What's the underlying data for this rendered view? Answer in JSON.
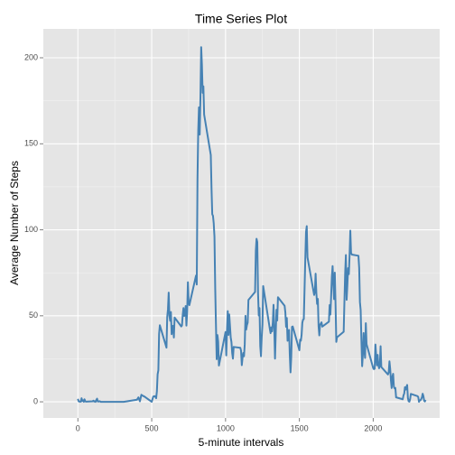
{
  "chart_data": {
    "type": "line",
    "title": "Time Series Plot",
    "x_label": "5-minute intervals",
    "y_label": "Average Number of Steps",
    "xlim": [
      -234,
      2450
    ],
    "ylim": [
      -9.4,
      216.8
    ],
    "xticks": [
      0,
      500,
      1000,
      1500,
      2000
    ],
    "yticks": [
      0,
      50,
      100,
      150,
      200
    ],
    "grid": true,
    "x": [
      0,
      5,
      10,
      15,
      20,
      25,
      30,
      35,
      40,
      45,
      50,
      55,
      100,
      105,
      110,
      115,
      120,
      125,
      130,
      135,
      140,
      145,
      150,
      155,
      200,
      300,
      310,
      400,
      410,
      420,
      430,
      440,
      450,
      500,
      510,
      520,
      525,
      530,
      535,
      540,
      545,
      550,
      555,
      600,
      605,
      610,
      615,
      620,
      625,
      630,
      635,
      640,
      645,
      650,
      655,
      700,
      705,
      710,
      715,
      720,
      725,
      730,
      735,
      740,
      745,
      750,
      755,
      800,
      805,
      810,
      815,
      820,
      825,
      830,
      835,
      840,
      845,
      850,
      855,
      900,
      905,
      910,
      915,
      920,
      925,
      930,
      935,
      940,
      945,
      950,
      955,
      1000,
      1005,
      1010,
      1015,
      1020,
      1025,
      1030,
      1035,
      1040,
      1045,
      1050,
      1055,
      1100,
      1105,
      1110,
      1115,
      1120,
      1125,
      1130,
      1135,
      1140,
      1145,
      1150,
      1155,
      1200,
      1205,
      1210,
      1215,
      1220,
      1225,
      1230,
      1235,
      1240,
      1245,
      1250,
      1255,
      1300,
      1305,
      1310,
      1315,
      1320,
      1325,
      1330,
      1335,
      1340,
      1345,
      1350,
      1355,
      1400,
      1405,
      1410,
      1415,
      1420,
      1425,
      1430,
      1435,
      1440,
      1445,
      1450,
      1455,
      1500,
      1505,
      1510,
      1515,
      1520,
      1525,
      1530,
      1535,
      1540,
      1545,
      1550,
      1555,
      1600,
      1605,
      1610,
      1615,
      1620,
      1625,
      1630,
      1635,
      1640,
      1645,
      1650,
      1655,
      1700,
      1705,
      1710,
      1715,
      1720,
      1725,
      1730,
      1735,
      1740,
      1745,
      1750,
      1755,
      1800,
      1805,
      1810,
      1815,
      1820,
      1825,
      1830,
      1835,
      1840,
      1845,
      1850,
      1855,
      1900,
      1905,
      1910,
      1915,
      1920,
      1925,
      1930,
      1935,
      1940,
      1945,
      1950,
      1955,
      2000,
      2005,
      2010,
      2015,
      2020,
      2025,
      2030,
      2035,
      2040,
      2045,
      2050,
      2055,
      2100,
      2105,
      2110,
      2115,
      2120,
      2125,
      2130,
      2135,
      2140,
      2145,
      2150,
      2155,
      2200,
      2205,
      2210,
      2215,
      2220,
      2225,
      2230,
      2235,
      2240,
      2245,
      2250,
      2255,
      2300,
      2305,
      2310,
      2315,
      2320,
      2325,
      2330,
      2335,
      2340,
      2345,
      2350,
      2355
    ],
    "series": [
      {
        "name": "steps",
        "color": "#4682b4",
        "values": [
          1.72,
          0.34,
          0.13,
          0.15,
          0.08,
          2.09,
          0.53,
          0.87,
          0,
          1.47,
          0.3,
          0.13,
          0.32,
          0.68,
          0.15,
          0.34,
          0,
          1.11,
          1.83,
          0.17,
          0.17,
          0.38,
          0.26,
          0,
          0,
          0,
          0,
          1.2,
          2.6,
          0.3,
          4.1,
          3.5,
          3.1,
          0,
          3,
          3.3,
          2.96,
          2.1,
          6.06,
          16,
          18.3,
          39.5,
          44.5,
          31.5,
          49.3,
          53.8,
          63.5,
          50,
          47.1,
          52.2,
          39.3,
          44,
          44.2,
          37.4,
          49,
          43.8,
          44.4,
          50.5,
          54.5,
          49.9,
          51,
          55.7,
          44.3,
          52.3,
          69.5,
          57.8,
          56.2,
          73.4,
          68.2,
          129.4,
          157.5,
          171.2,
          155.4,
          177.3,
          206.2,
          195.9,
          179.6,
          183.4,
          167,
          143.5,
          124,
          109.1,
          108.1,
          103.7,
          95.97,
          66.2,
          45.2,
          24.8,
          38.8,
          35,
          21.1,
          40.6,
          26.98,
          42.4,
          52.7,
          38.9,
          50.8,
          44.3,
          37.4,
          34.7,
          28.3,
          25.1,
          31.9,
          31.4,
          29.7,
          21.3,
          25.5,
          28.4,
          26.5,
          33.4,
          50,
          42,
          44.6,
          46,
          59.2,
          63.9,
          87.7,
          94.8,
          92.8,
          63.4,
          50.2,
          54.5,
          32.4,
          26.5,
          37.7,
          45.1,
          67.3,
          42.3,
          39.9,
          43.3,
          40.98,
          46.2,
          56.4,
          42.8,
          25.1,
          39.97,
          53.5,
          47.3,
          60.8,
          55.8,
          51.96,
          43.6,
          48.7,
          35.5,
          37.5,
          41.8,
          27.5,
          17.1,
          26.1,
          43.6,
          43.8,
          30,
          36.1,
          35.5,
          38.8,
          45.96,
          47.8,
          48.1,
          65.3,
          82.9,
          98.7,
          102.1,
          83.96,
          62.1,
          64.1,
          74.5,
          63.2,
          56.9,
          59.8,
          43.9,
          38.6,
          44.7,
          45.5,
          46.2,
          43.7,
          46.6,
          56.3,
          50.7,
          61.2,
          72.7,
          78.9,
          68.9,
          59.7,
          75.1,
          56.5,
          34.8,
          37.5,
          40.7,
          58,
          74.7,
          85.3,
          59.3,
          67.8,
          77.7,
          74.2,
          85.3,
          99.5,
          86.6,
          85.6,
          84.9,
          77.8,
          58,
          53.4,
          36.3,
          20.7,
          27.4,
          40,
          30.2,
          25.5,
          45.7,
          33.5,
          19.6,
          19,
          19.3,
          33.3,
          26.8,
          21.2,
          27.3,
          21.3,
          19.5,
          21.3,
          32.3,
          20.2,
          15.9,
          17.2,
          23.5,
          19.2,
          12.5,
          8,
          14.7,
          16.3,
          8.7,
          7.8,
          8.1,
          2.6,
          1.5,
          3.7,
          4.8,
          8.5,
          7.1,
          8.7,
          9.8,
          2.2,
          0.3,
          0.1,
          1.6,
          4.6,
          3.3,
          2.8,
          0,
          0.8,
          0.96,
          1.6,
          2.6,
          4.7,
          3.3,
          0.64,
          0.23,
          1.08
        ]
      }
    ]
  }
}
